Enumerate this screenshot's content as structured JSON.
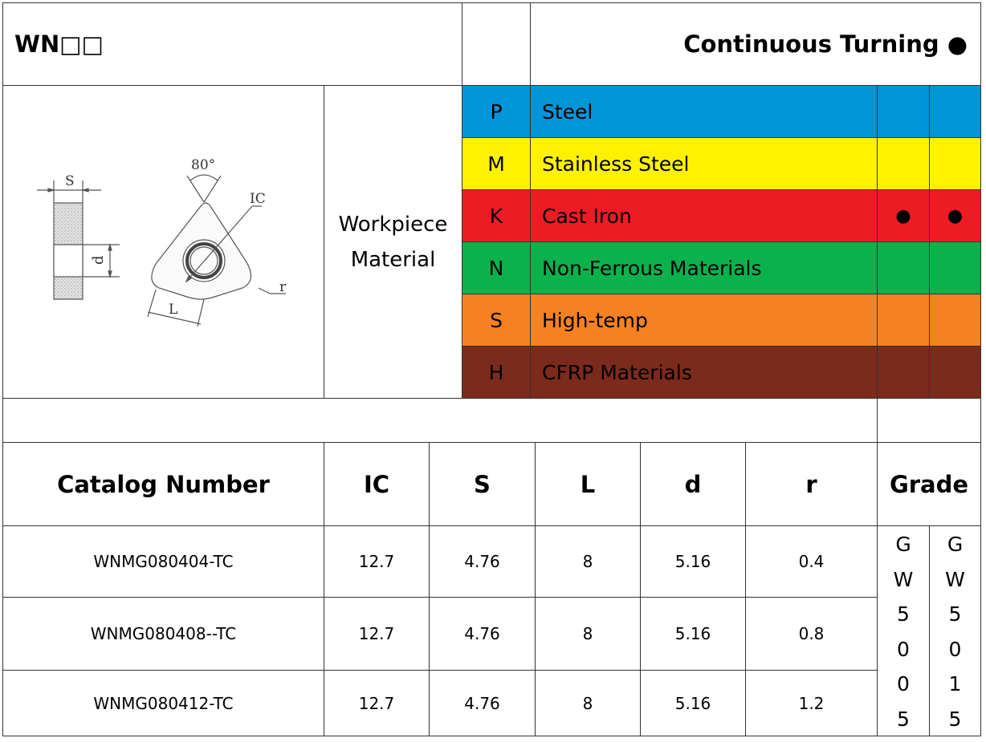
{
  "header": {
    "series": "WN□□",
    "operation": "Continuous Turning ●"
  },
  "workpiece_label": "Workpiece Material",
  "materials": [
    {
      "code": "P",
      "name": "Steel",
      "color": "#0095d9",
      "marks": [
        "",
        ""
      ]
    },
    {
      "code": "M",
      "name": "Stainless Steel",
      "color": "#fff200",
      "marks": [
        "",
        ""
      ]
    },
    {
      "code": "K",
      "name": "Cast Iron",
      "color": "#ed1c24",
      "marks": [
        "●",
        "●"
      ]
    },
    {
      "code": "N",
      "name": "Non-Ferrous Materials",
      "color": "#0bb14b",
      "marks": [
        "",
        ""
      ]
    },
    {
      "code": "S",
      "name": "High-temp",
      "color": "#f58220",
      "marks": [
        "",
        ""
      ]
    },
    {
      "code": "H",
      "name": "CFRP Materials",
      "color": "#7b2a1b",
      "marks": [
        "",
        ""
      ]
    }
  ],
  "drawing": {
    "labels": {
      "S": "S",
      "d": "d",
      "angle": "80°",
      "IC": "IC",
      "L": "L",
      "r": "r"
    }
  },
  "table": {
    "headers": [
      "Catalog Number",
      "IC",
      "S",
      "L",
      "d",
      "r",
      "Grade"
    ],
    "rows": [
      {
        "catalog": "WNMG080404-TC",
        "ic": "12.7",
        "s": "4.76",
        "l": "8",
        "d": "5.16",
        "r": "0.4"
      },
      {
        "catalog": "WNMG080408--TC",
        "ic": "12.7",
        "s": "4.76",
        "l": "8",
        "d": "5.16",
        "r": "0.8"
      },
      {
        "catalog": "WNMG080412-TC",
        "ic": "12.7",
        "s": "4.76",
        "l": "8",
        "d": "5.16",
        "r": "1.2"
      }
    ],
    "grades": [
      [
        "G",
        "W",
        "5",
        "0",
        "0",
        "5"
      ],
      [
        "G",
        "W",
        "5",
        "0",
        "1",
        "5"
      ]
    ]
  }
}
